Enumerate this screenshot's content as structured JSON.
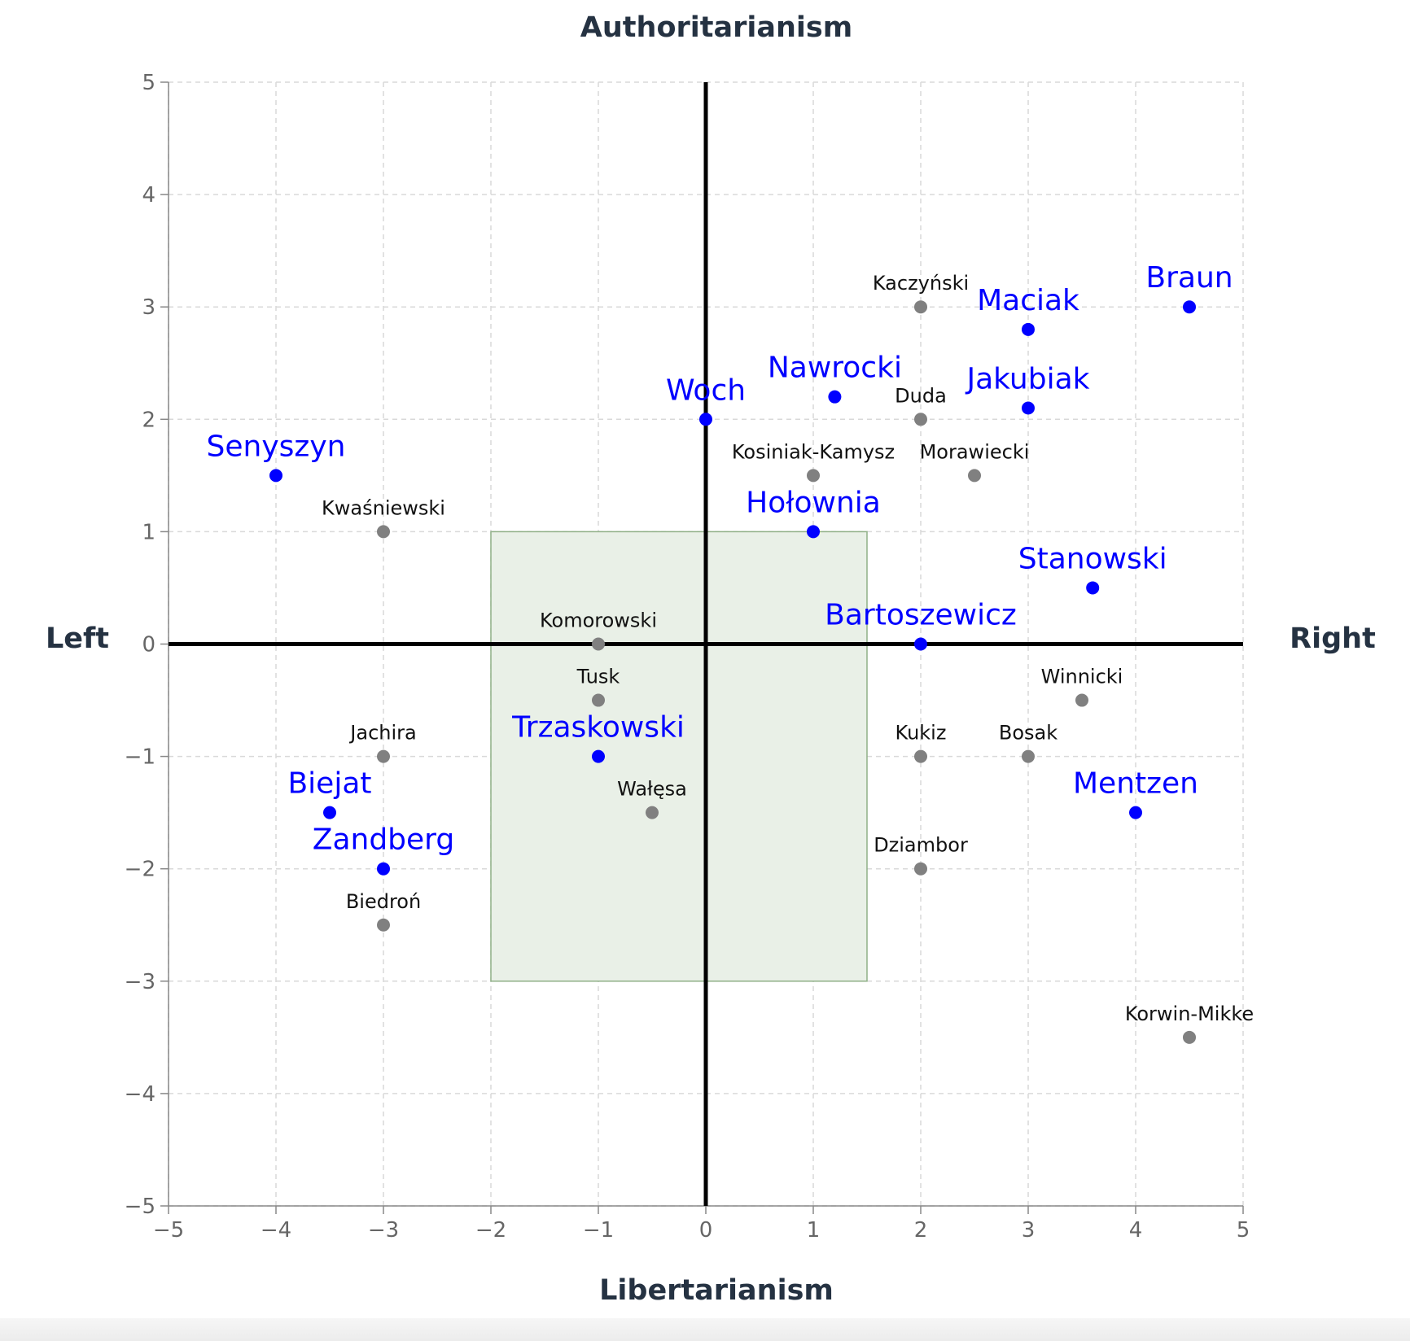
{
  "chart_data": {
    "type": "scatter",
    "title": "",
    "top_label": "Authoritarianism",
    "bottom_label": "Libertarianism",
    "left_label": "Left",
    "right_label": "Right",
    "xlim": [
      -5,
      5
    ],
    "ylim": [
      -5,
      5
    ],
    "x_ticks": [
      "-5",
      "-4",
      "-3",
      "-2",
      "-1",
      "0",
      "1",
      "2",
      "3",
      "4",
      "5"
    ],
    "y_ticks": [
      "-5",
      "-4",
      "-3",
      "-2",
      "-1",
      "0",
      "1",
      "2",
      "3",
      "4",
      "5"
    ],
    "grid": true,
    "highlight_region": {
      "x": [
        -2,
        1.5
      ],
      "y": [
        -3,
        1
      ],
      "color": "#e9f0e7",
      "border": "#8fb087"
    },
    "colors": {
      "blue": "#0000ff",
      "gray": "#808080",
      "axes": "#000000"
    },
    "series": [
      {
        "color": "#0000ff",
        "points": [
          {
            "name": "Braun",
            "x": 4.5,
            "y": 3
          },
          {
            "name": "Maciak",
            "x": 3,
            "y": 2.8
          },
          {
            "name": "Jakubiak",
            "x": 3,
            "y": 2.1
          },
          {
            "name": "Nawrocki",
            "x": 1.2,
            "y": 2.2
          },
          {
            "name": "Woch",
            "x": 0,
            "y": 2
          },
          {
            "name": "Senyszyn",
            "x": -4,
            "y": 1.5
          },
          {
            "name": "Hołownia",
            "x": 1,
            "y": 1
          },
          {
            "name": "Stanowski",
            "x": 3.6,
            "y": 0.5
          },
          {
            "name": "Bartoszewicz",
            "x": 2,
            "y": 0
          },
          {
            "name": "Trzaskowski",
            "x": -1,
            "y": -1
          },
          {
            "name": "Biejat",
            "x": -3.5,
            "y": -1.5
          },
          {
            "name": "Zandberg",
            "x": -3,
            "y": -2
          },
          {
            "name": "Mentzen",
            "x": 4,
            "y": -1.5
          }
        ]
      },
      {
        "color": "#808080",
        "points": [
          {
            "name": "Kaczyński",
            "x": 2,
            "y": 3
          },
          {
            "name": "Duda",
            "x": 2,
            "y": 2
          },
          {
            "name": "Kosiniak-Kamysz",
            "x": 1,
            "y": 1.5
          },
          {
            "name": "Morawiecki",
            "x": 2.5,
            "y": 1.5
          },
          {
            "name": "Kwaśniewski",
            "x": -3,
            "y": 1
          },
          {
            "name": "Komorowski",
            "x": -1,
            "y": 0
          },
          {
            "name": "Tusk",
            "x": -1,
            "y": -0.5
          },
          {
            "name": "Winnicki",
            "x": 3.5,
            "y": -0.5
          },
          {
            "name": "Jachira",
            "x": -3,
            "y": -1
          },
          {
            "name": "Kukiz",
            "x": 2,
            "y": -1
          },
          {
            "name": "Bosak",
            "x": 3,
            "y": -1
          },
          {
            "name": "Wałęsa",
            "x": -0.5,
            "y": -1.5
          },
          {
            "name": "Dziambor",
            "x": 2,
            "y": -2
          },
          {
            "name": "Biedroń",
            "x": -3,
            "y": -2.5
          },
          {
            "name": "Korwin-Mikke",
            "x": 4.5,
            "y": -3.5
          }
        ]
      }
    ]
  }
}
